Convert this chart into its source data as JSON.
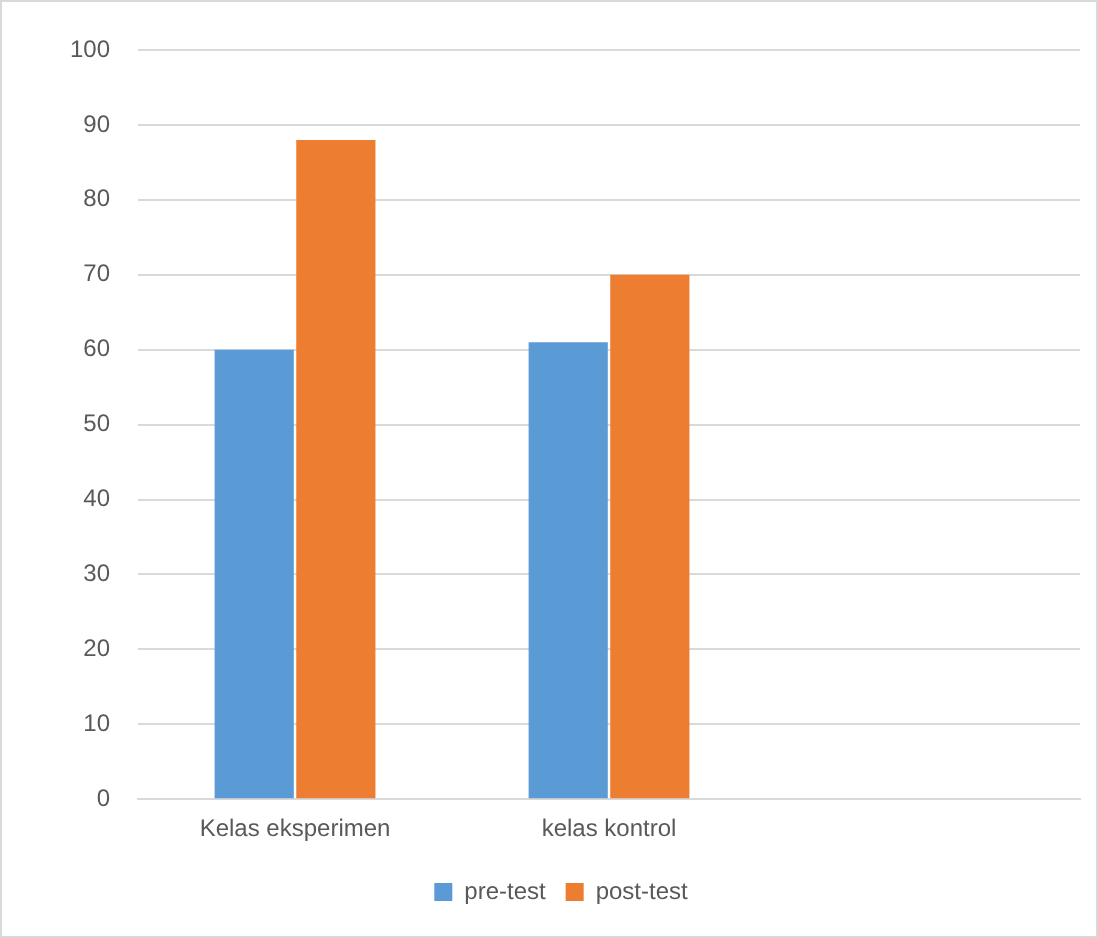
{
  "chart_data": {
    "type": "bar",
    "categories": [
      "Kelas eksperimen",
      "kelas kontrol",
      null
    ],
    "series": [
      {
        "name": "pre-test",
        "color": "#5b9bd5",
        "values": [
          60,
          61,
          null
        ]
      },
      {
        "name": "post-test",
        "color": "#ed7d31",
        "values": [
          88,
          70,
          null
        ]
      }
    ],
    "ylim": [
      0,
      100
    ],
    "yticks": [
      0,
      10,
      20,
      30,
      40,
      50,
      60,
      70,
      80,
      90,
      100
    ],
    "grid": "y",
    "legend": "bottom"
  }
}
